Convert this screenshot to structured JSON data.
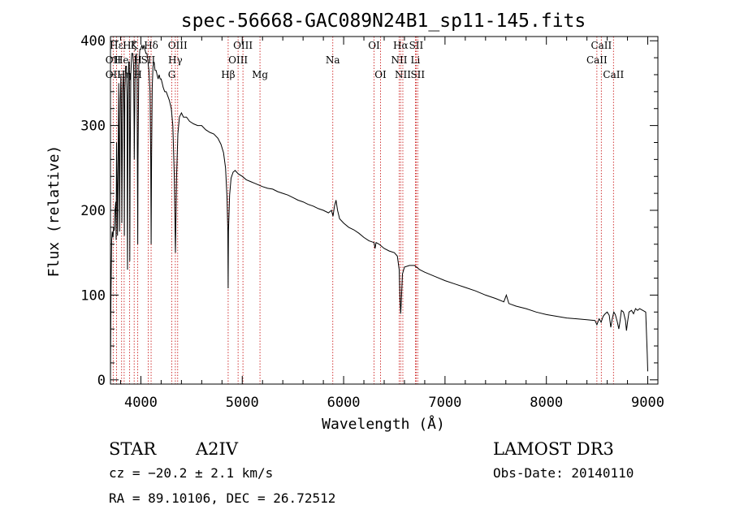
{
  "chart_data": {
    "type": "line",
    "title": "spec-56668-GAC089N24B1_sp11-145.fits",
    "xlabel": "Wavelength (Å)",
    "ylabel": "Flux (relative)",
    "xlim": [
      3700,
      9100
    ],
    "ylim": [
      -5,
      405
    ],
    "xticks": [
      4000,
      5000,
      6000,
      7000,
      8000,
      9000
    ],
    "yticks": [
      0,
      100,
      200,
      300,
      400
    ],
    "grid": false,
    "spectrum": [
      [
        3700,
        0
      ],
      [
        3705,
        100
      ],
      [
        3712,
        165
      ],
      [
        3718,
        175
      ],
      [
        3725,
        168
      ],
      [
        3732,
        180
      ],
      [
        3738,
        176
      ],
      [
        3745,
        200
      ],
      [
        3752,
        210
      ],
      [
        3756,
        165
      ],
      [
        3760,
        280
      ],
      [
        3766,
        230
      ],
      [
        3770,
        170
      ],
      [
        3775,
        255
      ],
      [
        3782,
        350
      ],
      [
        3786,
        260
      ],
      [
        3790,
        175
      ],
      [
        3797,
        330
      ],
      [
        3803,
        360
      ],
      [
        3808,
        300
      ],
      [
        3812,
        185
      ],
      [
        3820,
        340
      ],
      [
        3828,
        365
      ],
      [
        3835,
        310
      ],
      [
        3837,
        170
      ],
      [
        3842,
        340
      ],
      [
        3850,
        370
      ],
      [
        3858,
        370
      ],
      [
        3864,
        330
      ],
      [
        3866,
        200
      ],
      [
        3868,
        130
      ],
      [
        3870,
        210
      ],
      [
        3875,
        340
      ],
      [
        3880,
        375
      ],
      [
        3886,
        375
      ],
      [
        3889,
        240
      ],
      [
        3891,
        140
      ],
      [
        3894,
        250
      ],
      [
        3900,
        360
      ],
      [
        3910,
        385
      ],
      [
        3920,
        385
      ],
      [
        3928,
        370
      ],
      [
        3933,
        300
      ],
      [
        3935,
        260
      ],
      [
        3938,
        300
      ],
      [
        3945,
        380
      ],
      [
        3955,
        385
      ],
      [
        3962,
        360
      ],
      [
        3966,
        250
      ],
      [
        3969,
        160
      ],
      [
        3972,
        260
      ],
      [
        3980,
        370
      ],
      [
        3990,
        390
      ],
      [
        4000,
        390
      ],
      [
        4010,
        395
      ],
      [
        4020,
        390
      ],
      [
        4030,
        395
      ],
      [
        4040,
        390
      ],
      [
        4050,
        385
      ],
      [
        4060,
        385
      ],
      [
        4070,
        375
      ],
      [
        4080,
        365
      ],
      [
        4090,
        340
      ],
      [
        4097,
        260
      ],
      [
        4101,
        160
      ],
      [
        4105,
        260
      ],
      [
        4112,
        345
      ],
      [
        4120,
        370
      ],
      [
        4130,
        375
      ],
      [
        4140,
        365
      ],
      [
        4150,
        365
      ],
      [
        4160,
        360
      ],
      [
        4170,
        355
      ],
      [
        4180,
        360
      ],
      [
        4190,
        355
      ],
      [
        4200,
        355
      ],
      [
        4210,
        350
      ],
      [
        4220,
        345
      ],
      [
        4235,
        340
      ],
      [
        4250,
        340
      ],
      [
        4265,
        335
      ],
      [
        4280,
        330
      ],
      [
        4300,
        320
      ],
      [
        4315,
        300
      ],
      [
        4330,
        240
      ],
      [
        4341,
        150
      ],
      [
        4352,
        240
      ],
      [
        4365,
        290
      ],
      [
        4380,
        310
      ],
      [
        4400,
        315
      ],
      [
        4420,
        310
      ],
      [
        4450,
        310
      ],
      [
        4480,
        305
      ],
      [
        4520,
        302
      ],
      [
        4560,
        300
      ],
      [
        4600,
        300
      ],
      [
        4640,
        295
      ],
      [
        4680,
        292
      ],
      [
        4720,
        290
      ],
      [
        4760,
        285
      ],
      [
        4790,
        278
      ],
      [
        4815,
        268
      ],
      [
        4835,
        250
      ],
      [
        4850,
        215
      ],
      [
        4858,
        175
      ],
      [
        4861,
        108
      ],
      [
        4864,
        175
      ],
      [
        4875,
        218
      ],
      [
        4890,
        238
      ],
      [
        4910,
        245
      ],
      [
        4930,
        247
      ],
      [
        4960,
        243
      ],
      [
        5000,
        240
      ],
      [
        5040,
        236
      ],
      [
        5080,
        234
      ],
      [
        5120,
        232
      ],
      [
        5160,
        230
      ],
      [
        5200,
        228
      ],
      [
        5250,
        226
      ],
      [
        5300,
        225
      ],
      [
        5350,
        222
      ],
      [
        5400,
        220
      ],
      [
        5450,
        218
      ],
      [
        5500,
        215
      ],
      [
        5550,
        212
      ],
      [
        5600,
        210
      ],
      [
        5650,
        207
      ],
      [
        5700,
        205
      ],
      [
        5750,
        202
      ],
      [
        5800,
        200
      ],
      [
        5850,
        197
      ],
      [
        5880,
        200
      ],
      [
        5895,
        193
      ],
      [
        5910,
        205
      ],
      [
        5925,
        212
      ],
      [
        5940,
        200
      ],
      [
        5960,
        190
      ],
      [
        6000,
        185
      ],
      [
        6050,
        180
      ],
      [
        6100,
        177
      ],
      [
        6150,
        173
      ],
      [
        6200,
        168
      ],
      [
        6250,
        164
      ],
      [
        6300,
        162
      ],
      [
        6310,
        155
      ],
      [
        6320,
        162
      ],
      [
        6350,
        160
      ],
      [
        6400,
        155
      ],
      [
        6450,
        152
      ],
      [
        6500,
        150
      ],
      [
        6530,
        146
      ],
      [
        6548,
        130
      ],
      [
        6556,
        95
      ],
      [
        6563,
        78
      ],
      [
        6570,
        95
      ],
      [
        6580,
        125
      ],
      [
        6600,
        133
      ],
      [
        6650,
        135
      ],
      [
        6700,
        135
      ],
      [
        6750,
        130
      ],
      [
        6800,
        127
      ],
      [
        6900,
        122
      ],
      [
        7000,
        117
      ],
      [
        7100,
        113
      ],
      [
        7200,
        109
      ],
      [
        7300,
        105
      ],
      [
        7400,
        100
      ],
      [
        7500,
        96
      ],
      [
        7580,
        92
      ],
      [
        7605,
        100
      ],
      [
        7630,
        90
      ],
      [
        7700,
        87
      ],
      [
        7800,
        84
      ],
      [
        7900,
        80
      ],
      [
        8000,
        77
      ],
      [
        8100,
        75
      ],
      [
        8200,
        73
      ],
      [
        8300,
        72
      ],
      [
        8400,
        71
      ],
      [
        8480,
        70
      ],
      [
        8498,
        65
      ],
      [
        8520,
        72
      ],
      [
        8540,
        68
      ],
      [
        8560,
        75
      ],
      [
        8580,
        78
      ],
      [
        8600,
        80
      ],
      [
        8620,
        76
      ],
      [
        8635,
        62
      ],
      [
        8650,
        72
      ],
      [
        8665,
        80
      ],
      [
        8680,
        77
      ],
      [
        8700,
        68
      ],
      [
        8715,
        60
      ],
      [
        8725,
        68
      ],
      [
        8740,
        82
      ],
      [
        8760,
        80
      ],
      [
        8780,
        70
      ],
      [
        8790,
        58
      ],
      [
        8800,
        68
      ],
      [
        8815,
        80
      ],
      [
        8840,
        82
      ],
      [
        8860,
        78
      ],
      [
        8880,
        84
      ],
      [
        8900,
        82
      ],
      [
        8920,
        84
      ],
      [
        8950,
        82
      ],
      [
        8980,
        80
      ],
      [
        8995,
        30
      ],
      [
        9000,
        10
      ]
    ],
    "lines": [
      {
        "name": "Hε",
        "x": 3760,
        "row": 1
      },
      {
        "name": "OII",
        "x": 3727,
        "row": 2
      },
      {
        "name": "OII",
        "x": 3727,
        "row": 3
      },
      {
        "name": "He",
        "x": 3810,
        "row": 2
      },
      {
        "name": "Hζ",
        "x": 3889,
        "row": 1
      },
      {
        "name": "Hη",
        "x": 3835,
        "row": 3
      },
      {
        "name": "K",
        "x": 3934,
        "row": 1
      },
      {
        "name": "H",
        "x": 3969,
        "row": 2
      },
      {
        "name": "H",
        "x": 3969,
        "row": 3
      },
      {
        "name": "Hδ",
        "x": 4101,
        "row": 1
      },
      {
        "name": "SII",
        "x": 4072,
        "row": 2
      },
      {
        "name": "OIII",
        "x": 4363,
        "row": 1
      },
      {
        "name": "Hγ",
        "x": 4340,
        "row": 2
      },
      {
        "name": "G",
        "x": 4305,
        "row": 3
      },
      {
        "name": "OIII",
        "x": 5007,
        "row": 1
      },
      {
        "name": "OIII",
        "x": 4959,
        "row": 2
      },
      {
        "name": "Hβ",
        "x": 4861,
        "row": 3
      },
      {
        "name": "Mg",
        "x": 5175,
        "row": 3
      },
      {
        "name": "Na",
        "x": 5893,
        "row": 2
      },
      {
        "name": "OI",
        "x": 6300,
        "row": 1
      },
      {
        "name": "OI",
        "x": 6364,
        "row": 3
      },
      {
        "name": "Hα",
        "x": 6563,
        "row": 1
      },
      {
        "name": "SII",
        "x": 6716,
        "row": 1
      },
      {
        "name": "NII",
        "x": 6548,
        "row": 2
      },
      {
        "name": "Li",
        "x": 6708,
        "row": 2
      },
      {
        "name": "NII",
        "x": 6584,
        "row": 3
      },
      {
        "name": "SII",
        "x": 6731,
        "row": 3
      },
      {
        "name": "CaII",
        "x": 8542,
        "row": 1
      },
      {
        "name": "CaII",
        "x": 8498,
        "row": 2
      },
      {
        "name": "CaII",
        "x": 8662,
        "row": 3
      }
    ],
    "line_positions": [
      3727,
      3760,
      3810,
      3835,
      3889,
      3934,
      3969,
      4072,
      4101,
      4305,
      4340,
      4363,
      4861,
      4959,
      5007,
      5175,
      5893,
      6300,
      6364,
      6548,
      6563,
      6584,
      6708,
      6716,
      6731,
      8498,
      8542,
      8662
    ]
  },
  "info": {
    "object_type": "STAR",
    "subclass": "A2IV",
    "survey": "LAMOST DR3",
    "cz": "cz = −20.2 ± 2.1 km/s",
    "obs_date": "Obs-Date: 20140110",
    "coords": "RA =  89.10106, DEC =  26.72512"
  },
  "colors": {
    "spectrum": "#000000",
    "line_marker": "#cc2222",
    "axis": "#000000"
  }
}
